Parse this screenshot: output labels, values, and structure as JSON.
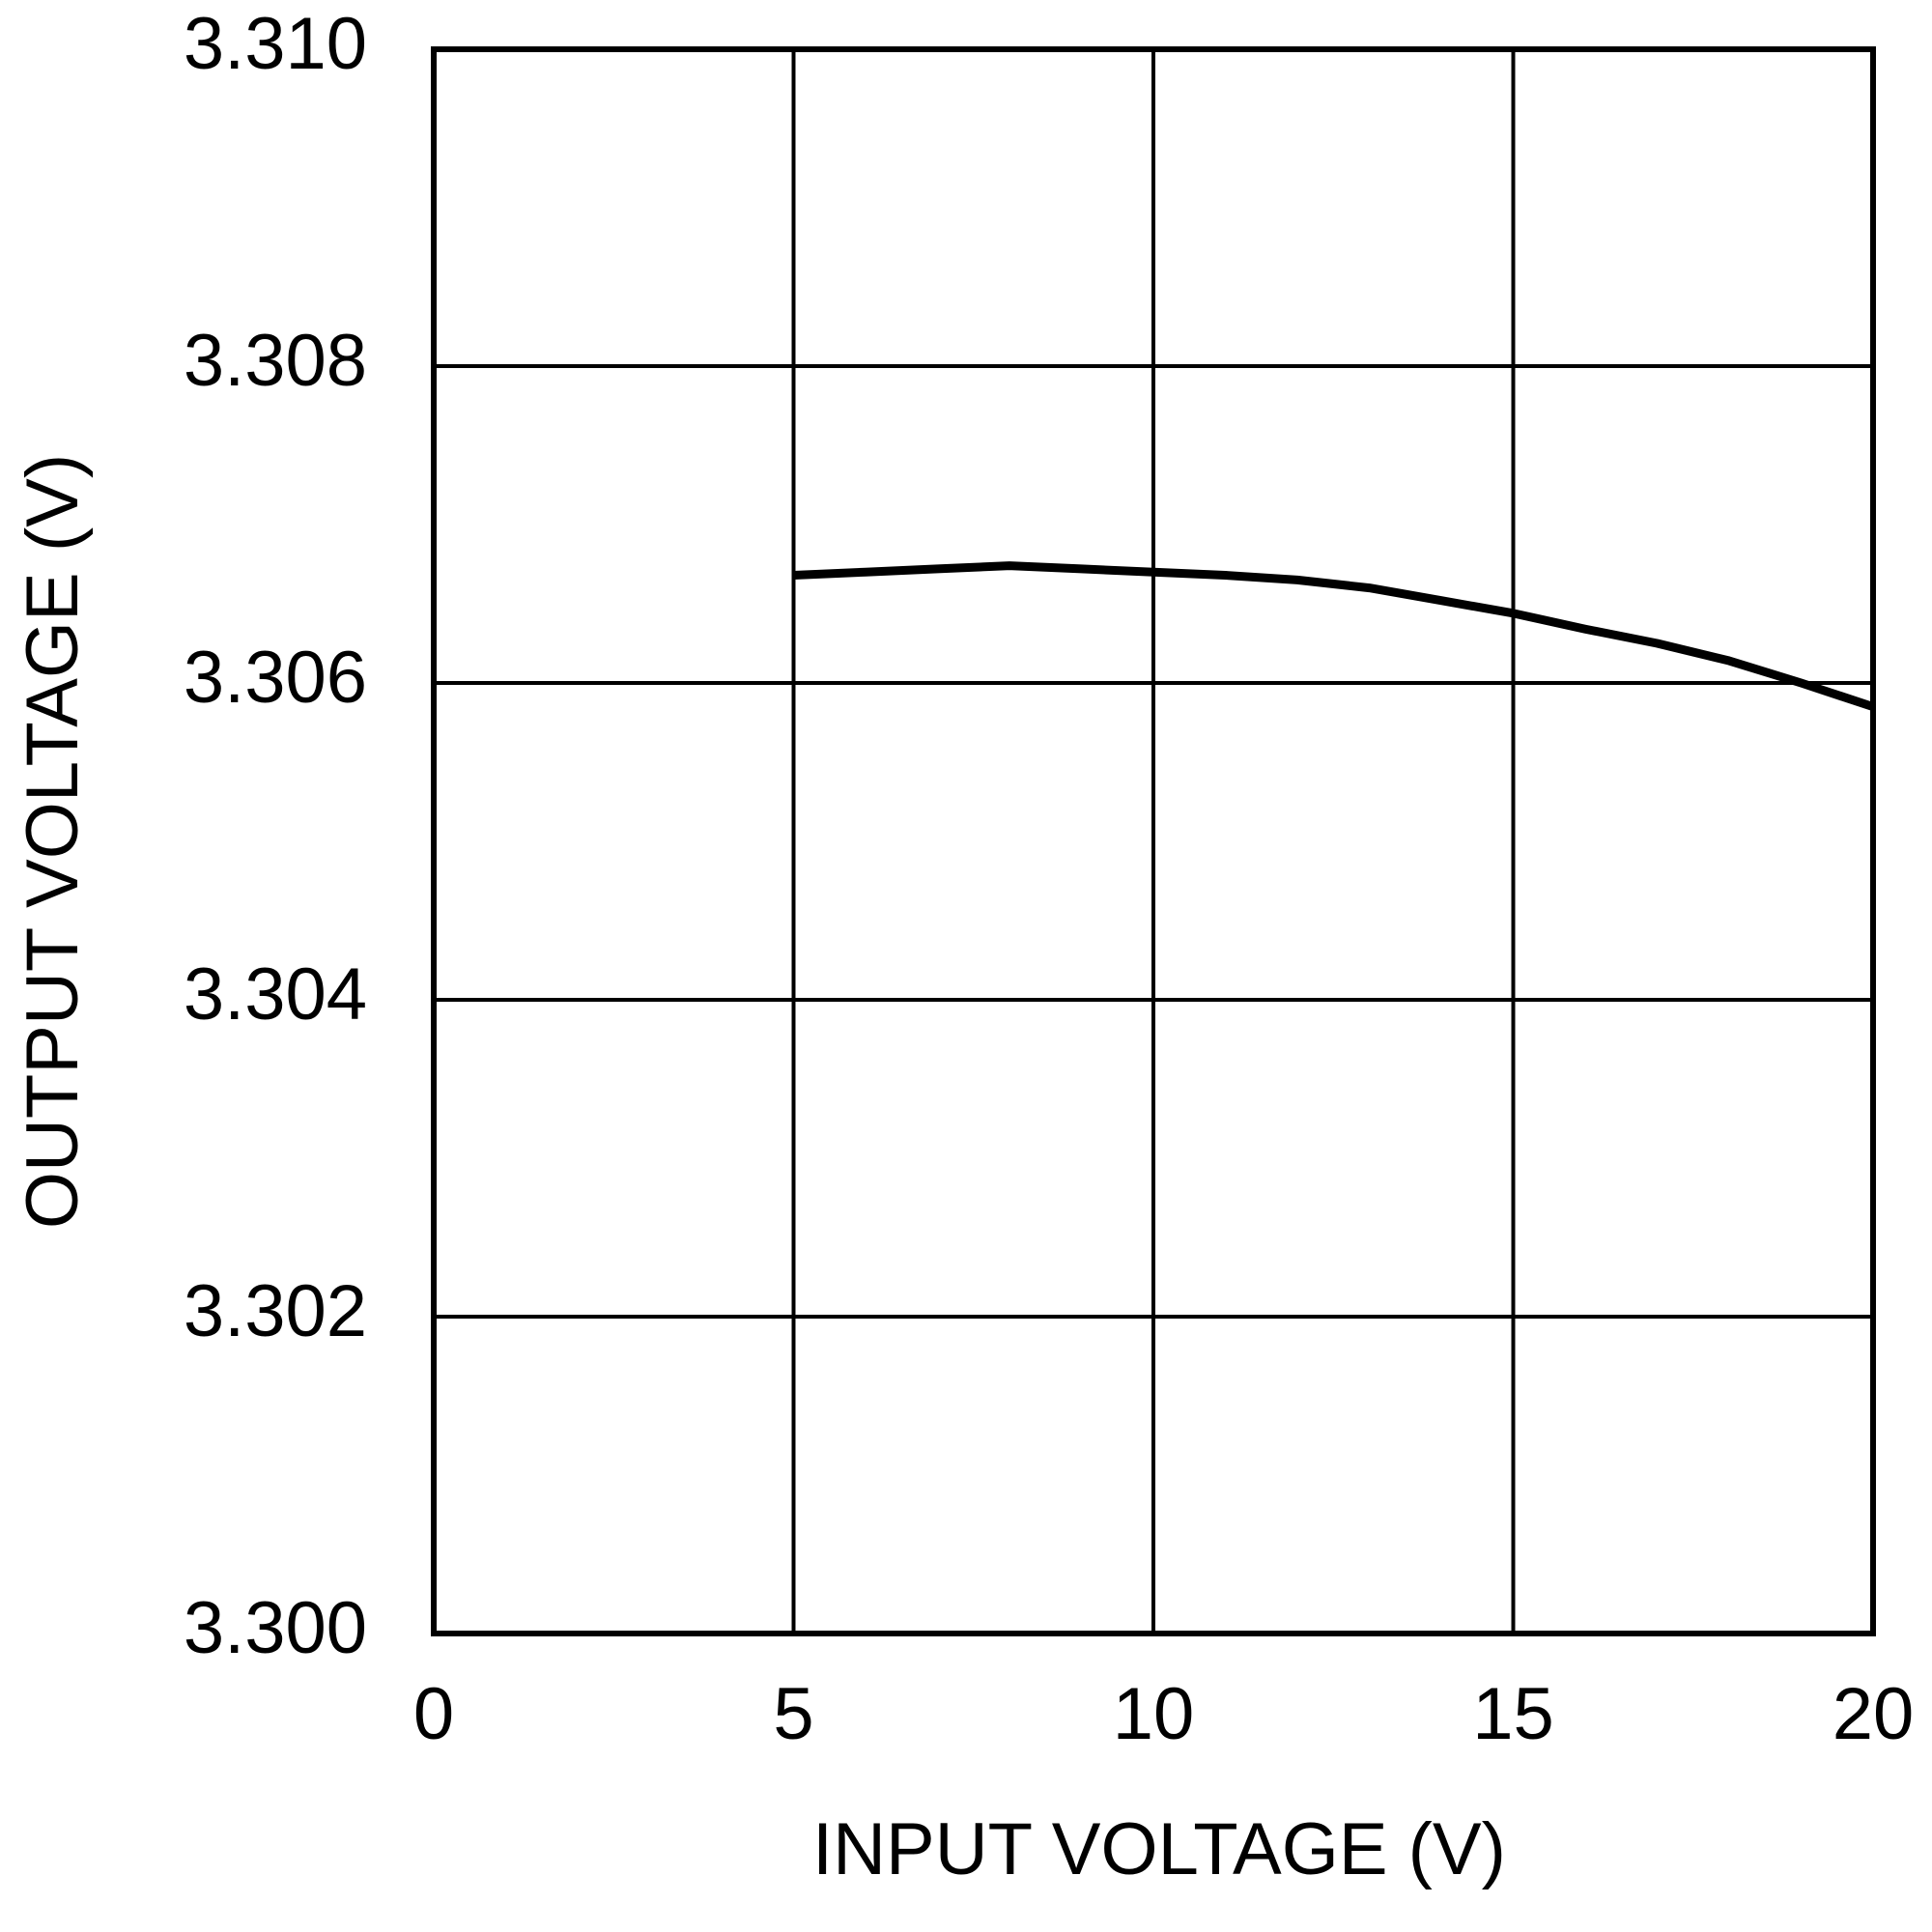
{
  "chart_data": {
    "type": "line",
    "xlabel": "INPUT VOLTAGE (V)",
    "ylabel": "OUTPUT VOLTAGE (V)",
    "xlim": [
      0,
      20
    ],
    "xticks": [
      0,
      5,
      10,
      15,
      20
    ],
    "ylim": [
      3.3,
      3.31
    ],
    "yticks": [
      {
        "value": 3.3,
        "label": "3.300"
      },
      3.302,
      3.304,
      3.306,
      3.308,
      {
        "value": 3.31,
        "label": "3.310"
      }
    ],
    "grid": true,
    "series": [
      {
        "color": "#000000",
        "x": [
          5,
          6,
          7,
          8,
          9,
          10,
          11,
          12,
          13,
          14,
          15,
          16,
          17,
          18,
          19,
          20
        ],
        "values": [
          3.30668,
          3.3067,
          3.30672,
          3.30674,
          3.30672,
          3.3067,
          3.30668,
          3.30665,
          3.3066,
          3.30652,
          3.30644,
          3.30634,
          3.30625,
          3.30614,
          3.306,
          3.30585
        ]
      }
    ]
  }
}
